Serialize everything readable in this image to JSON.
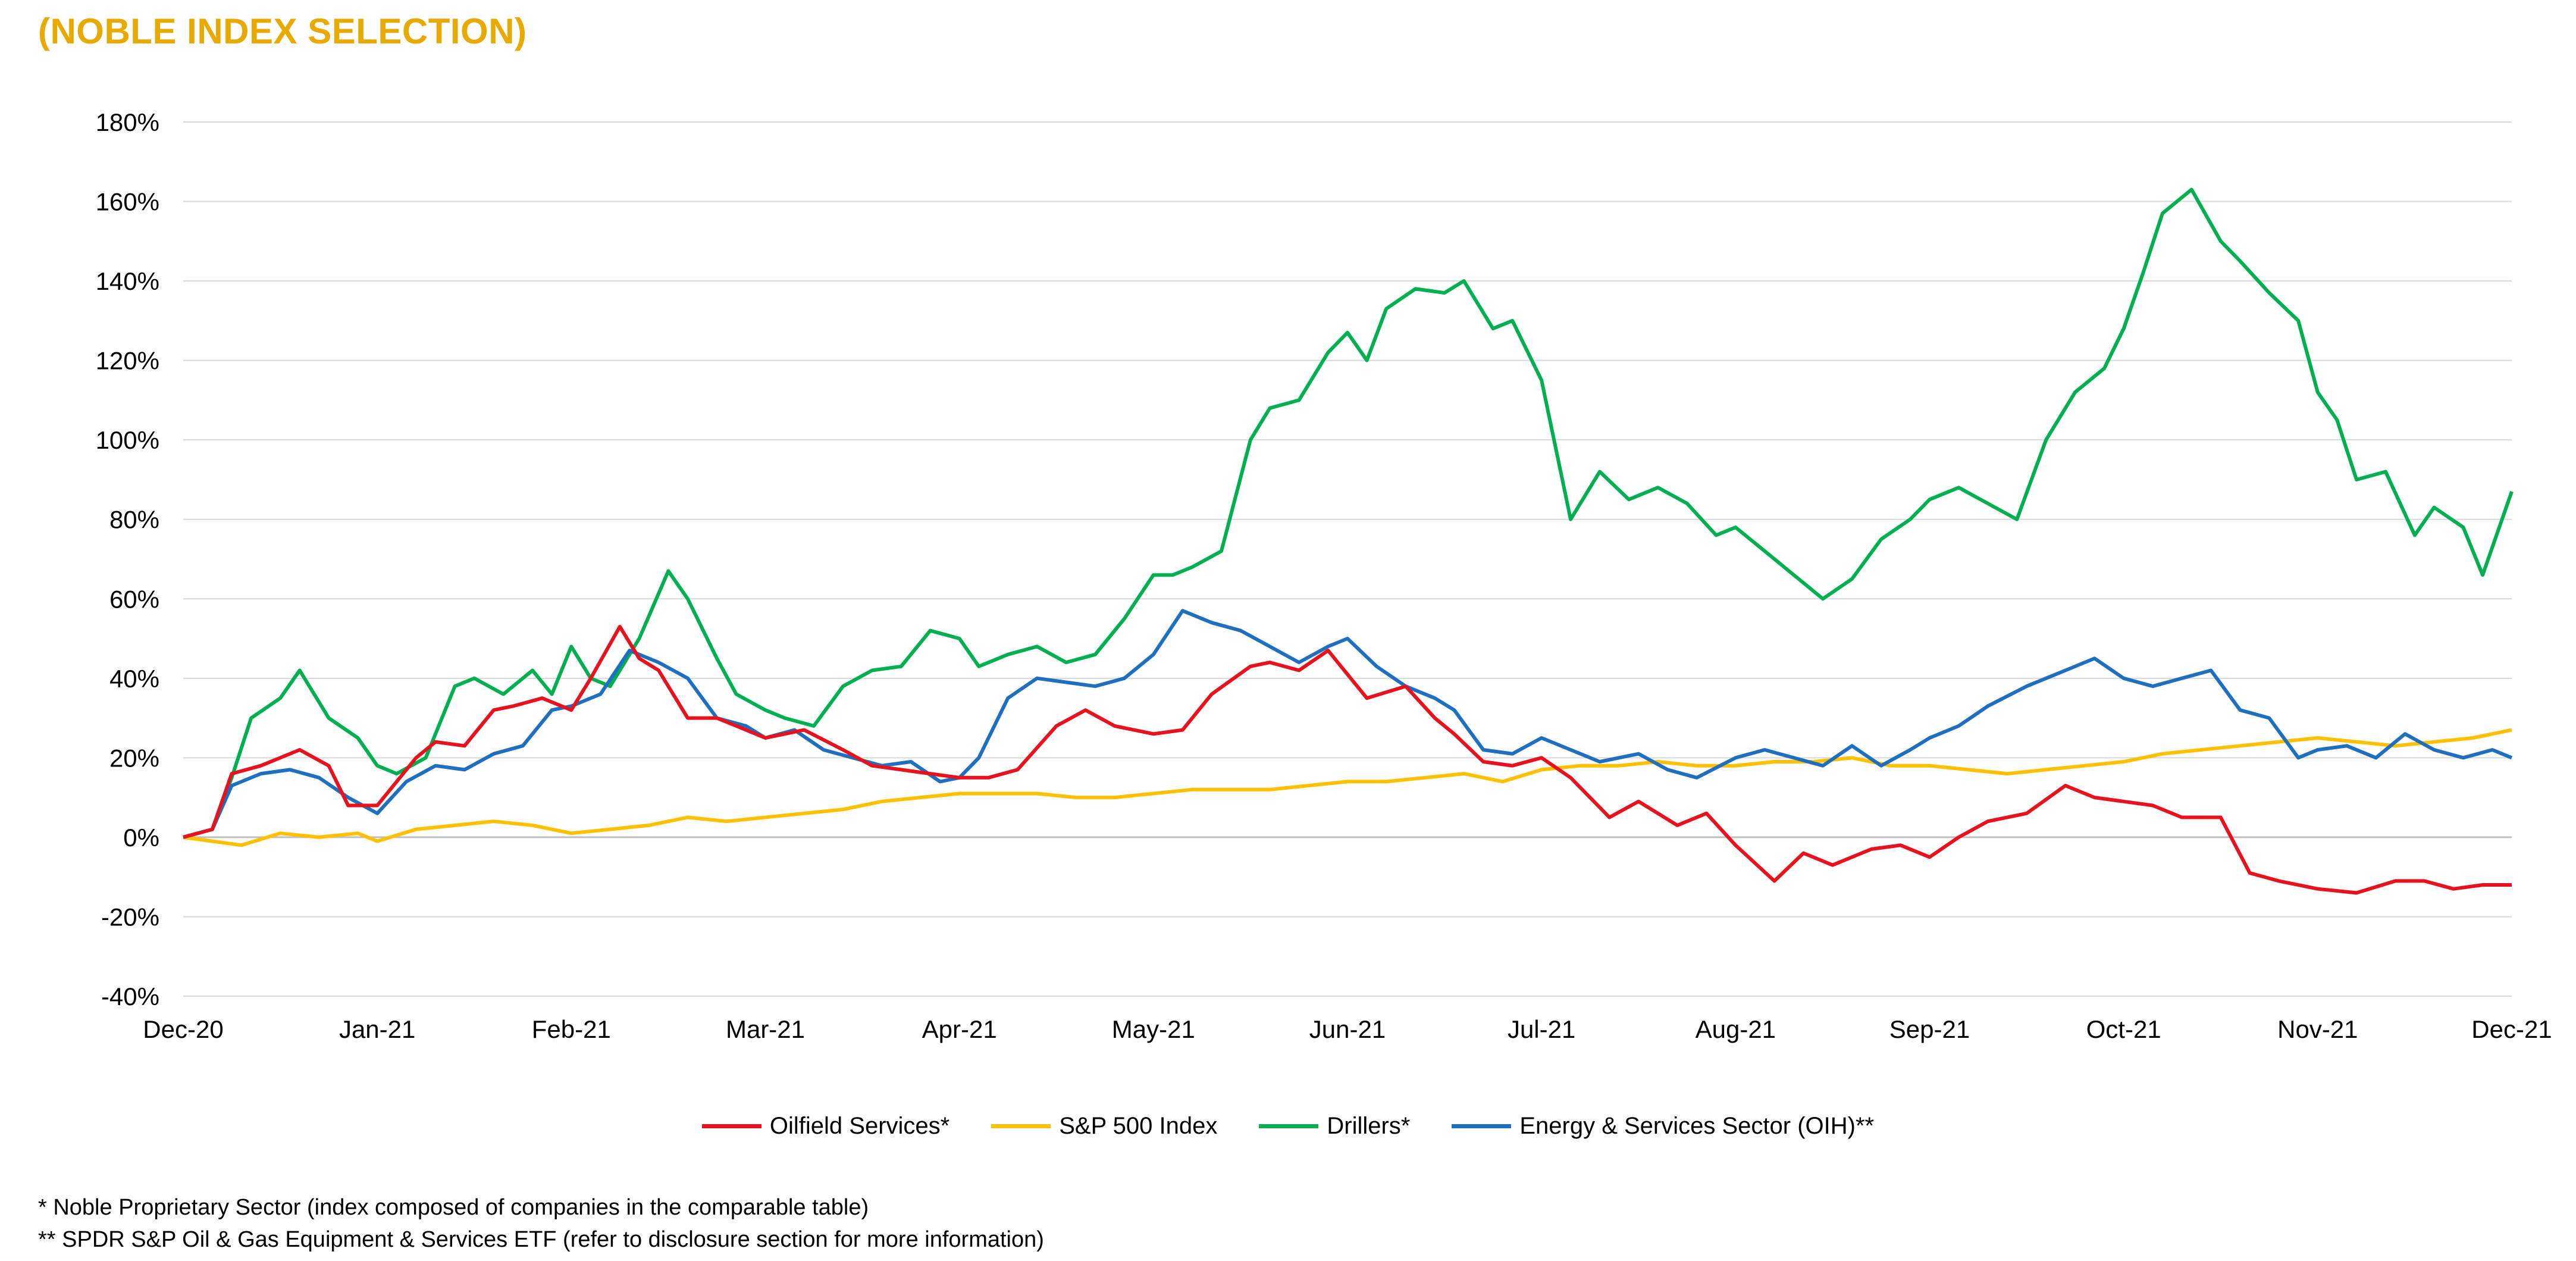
{
  "title": "(NOBLE INDEX SELECTION)",
  "colors": {
    "title": "#e8a900",
    "grid": "#d9d9d9",
    "axis": "#bfbfbf"
  },
  "chart_data": {
    "type": "line",
    "ylim": [
      -40,
      180
    ],
    "yticks": [
      -40,
      -20,
      0,
      20,
      40,
      60,
      80,
      100,
      120,
      140,
      160,
      180
    ],
    "ytick_labels": [
      "-40%",
      "-20%",
      "0%",
      "20%",
      "40%",
      "60%",
      "80%",
      "100%",
      "120%",
      "140%",
      "160%",
      "180%"
    ],
    "x_labels": [
      "Dec-20",
      "Jan-21",
      "Feb-21",
      "Mar-21",
      "Apr-21",
      "May-21",
      "Jun-21",
      "Jul-21",
      "Aug-21",
      "Sep-21",
      "Oct-21",
      "Nov-21",
      "Dec-21"
    ],
    "xlim": [
      0,
      12
    ],
    "grid": "horizontal",
    "legend_position": "bottom",
    "series": [
      {
        "name": "Oilfield Services*",
        "color": "#e8121e",
        "x": [
          0,
          0.15,
          0.25,
          0.4,
          0.6,
          0.75,
          0.85,
          1.0,
          1.2,
          1.3,
          1.45,
          1.6,
          1.7,
          1.85,
          2.0,
          2.1,
          2.25,
          2.35,
          2.45,
          2.6,
          2.75,
          2.85,
          3.0,
          3.2,
          3.4,
          3.55,
          3.7,
          3.85,
          4.0,
          4.15,
          4.3,
          4.5,
          4.65,
          4.8,
          5.0,
          5.15,
          5.3,
          5.5,
          5.6,
          5.75,
          5.9,
          6.1,
          6.3,
          6.45,
          6.55,
          6.7,
          6.85,
          7.0,
          7.15,
          7.35,
          7.5,
          7.7,
          7.85,
          8.0,
          8.2,
          8.35,
          8.5,
          8.7,
          8.85,
          9.0,
          9.15,
          9.3,
          9.5,
          9.7,
          9.85,
          10.0,
          10.15,
          10.3,
          10.5,
          10.65,
          10.8,
          11.0,
          11.2,
          11.4,
          11.55,
          11.7,
          11.85,
          12.0
        ],
        "y": [
          0,
          2,
          16,
          18,
          22,
          18,
          8,
          8,
          20,
          24,
          23,
          32,
          33,
          35,
          32,
          40,
          53,
          45,
          42,
          30,
          30,
          28,
          25,
          27,
          22,
          18,
          17,
          16,
          15,
          15,
          17,
          28,
          32,
          28,
          26,
          27,
          36,
          43,
          44,
          42,
          47,
          35,
          38,
          30,
          26,
          19,
          18,
          20,
          15,
          5,
          9,
          3,
          6,
          -2,
          -11,
          -4,
          -7,
          -3,
          -2,
          -5,
          0,
          4,
          6,
          13,
          10,
          9,
          8,
          5,
          5,
          -9,
          -11,
          -13,
          -14,
          -11,
          -11,
          -13,
          -12,
          -12
        ]
      },
      {
        "name": "S&P 500 Index",
        "color": "#ffc000",
        "x": [
          0,
          0.15,
          0.3,
          0.5,
          0.7,
          0.9,
          1.0,
          1.2,
          1.4,
          1.6,
          1.8,
          2.0,
          2.2,
          2.4,
          2.6,
          2.8,
          3.0,
          3.2,
          3.4,
          3.6,
          3.8,
          4.0,
          4.2,
          4.4,
          4.6,
          4.8,
          5.0,
          5.2,
          5.4,
          5.6,
          5.8,
          6.0,
          6.2,
          6.4,
          6.6,
          6.8,
          7.0,
          7.2,
          7.4,
          7.6,
          7.8,
          8.0,
          8.2,
          8.4,
          8.6,
          8.8,
          9.0,
          9.2,
          9.4,
          9.6,
          9.8,
          10.0,
          10.2,
          10.4,
          10.6,
          10.8,
          11.0,
          11.2,
          11.4,
          11.6,
          11.8,
          12.0
        ],
        "y": [
          0,
          -1,
          -2,
          1,
          0,
          1,
          -1,
          2,
          3,
          4,
          3,
          1,
          2,
          3,
          5,
          4,
          5,
          6,
          7,
          9,
          10,
          11,
          11,
          11,
          10,
          10,
          11,
          12,
          12,
          12,
          13,
          14,
          14,
          15,
          16,
          14,
          17,
          18,
          18,
          19,
          18,
          18,
          19,
          19,
          20,
          18,
          18,
          17,
          16,
          17,
          18,
          19,
          21,
          22,
          23,
          24,
          25,
          24,
          23,
          24,
          25,
          27
        ]
      },
      {
        "name": "Drillers*",
        "color": "#00b050",
        "x": [
          0,
          0.15,
          0.25,
          0.35,
          0.5,
          0.6,
          0.75,
          0.9,
          1.0,
          1.1,
          1.25,
          1.4,
          1.5,
          1.65,
          1.8,
          1.9,
          2.0,
          2.1,
          2.2,
          2.35,
          2.5,
          2.6,
          2.75,
          2.85,
          3.0,
          3.1,
          3.25,
          3.4,
          3.55,
          3.7,
          3.85,
          4.0,
          4.1,
          4.25,
          4.4,
          4.55,
          4.7,
          4.85,
          5.0,
          5.1,
          5.2,
          5.35,
          5.5,
          5.6,
          5.75,
          5.9,
          6.0,
          6.1,
          6.2,
          6.35,
          6.5,
          6.6,
          6.75,
          6.85,
          7.0,
          7.15,
          7.3,
          7.45,
          7.6,
          7.75,
          7.9,
          8.0,
          8.15,
          8.3,
          8.45,
          8.6,
          8.75,
          8.9,
          9.0,
          9.15,
          9.3,
          9.45,
          9.6,
          9.75,
          9.9,
          10.0,
          10.1,
          10.2,
          10.35,
          10.5,
          10.6,
          10.75,
          10.9,
          11.0,
          11.1,
          11.2,
          11.35,
          11.5,
          11.6,
          11.75,
          11.85,
          12.0
        ],
        "y": [
          0,
          2,
          15,
          30,
          35,
          42,
          30,
          25,
          18,
          16,
          20,
          38,
          40,
          36,
          42,
          36,
          48,
          40,
          38,
          50,
          67,
          60,
          45,
          36,
          32,
          30,
          28,
          38,
          42,
          43,
          52,
          50,
          43,
          46,
          48,
          44,
          46,
          55,
          66,
          66,
          68,
          72,
          100,
          108,
          110,
          122,
          127,
          120,
          133,
          138,
          137,
          140,
          128,
          130,
          115,
          80,
          92,
          85,
          88,
          84,
          76,
          78,
          72,
          66,
          60,
          65,
          75,
          80,
          85,
          88,
          84,
          80,
          100,
          112,
          118,
          128,
          142,
          157,
          163,
          150,
          145,
          137,
          130,
          112,
          105,
          90,
          92,
          76,
          83,
          78,
          66,
          87
        ],
        "points_note": ""
      },
      {
        "name": "Energy & Services Sector (OIH)**",
        "color": "#1f6fc0",
        "x": [
          0,
          0.15,
          0.25,
          0.4,
          0.55,
          0.7,
          0.85,
          1.0,
          1.15,
          1.3,
          1.45,
          1.6,
          1.75,
          1.9,
          2.0,
          2.15,
          2.3,
          2.45,
          2.6,
          2.75,
          2.9,
          3.0,
          3.15,
          3.3,
          3.45,
          3.6,
          3.75,
          3.9,
          4.0,
          4.1,
          4.25,
          4.4,
          4.55,
          4.7,
          4.85,
          5.0,
          5.15,
          5.3,
          5.45,
          5.6,
          5.75,
          5.9,
          6.0,
          6.15,
          6.3,
          6.45,
          6.55,
          6.7,
          6.85,
          7.0,
          7.15,
          7.3,
          7.5,
          7.65,
          7.8,
          8.0,
          8.15,
          8.3,
          8.45,
          8.6,
          8.75,
          8.9,
          9.0,
          9.15,
          9.3,
          9.5,
          9.7,
          9.85,
          10.0,
          10.15,
          10.3,
          10.45,
          10.6,
          10.75,
          10.9,
          11.0,
          11.15,
          11.3,
          11.45,
          11.6,
          11.75,
          11.9,
          12.0
        ],
        "y": [
          0,
          2,
          13,
          16,
          17,
          15,
          10,
          6,
          14,
          18,
          17,
          21,
          23,
          32,
          33,
          36,
          47,
          44,
          40,
          30,
          28,
          25,
          27,
          22,
          20,
          18,
          19,
          14,
          15,
          20,
          35,
          40,
          39,
          38,
          40,
          46,
          57,
          54,
          52,
          48,
          44,
          48,
          50,
          43,
          38,
          35,
          32,
          22,
          21,
          25,
          22,
          19,
          21,
          17,
          15,
          20,
          22,
          20,
          18,
          23,
          18,
          22,
          25,
          28,
          33,
          38,
          42,
          45,
          40,
          38,
          40,
          42,
          32,
          30,
          20,
          22,
          23,
          20,
          26,
          22,
          20,
          22,
          20
        ]
      }
    ]
  },
  "legend": [
    {
      "label": "Oilfield Services*",
      "color": "#e8121e"
    },
    {
      "label": "S&P 500 Index",
      "color": "#ffc000"
    },
    {
      "label": "Drillers*",
      "color": "#00b050"
    },
    {
      "label": "Energy & Services Sector (OIH)**",
      "color": "#1f6fc0"
    }
  ],
  "footnotes": [
    "* Noble Proprietary Sector (index composed of companies in the comparable table)",
    "** SPDR S&P Oil & Gas Equipment & Services ETF (refer to disclosure section for more information)"
  ]
}
